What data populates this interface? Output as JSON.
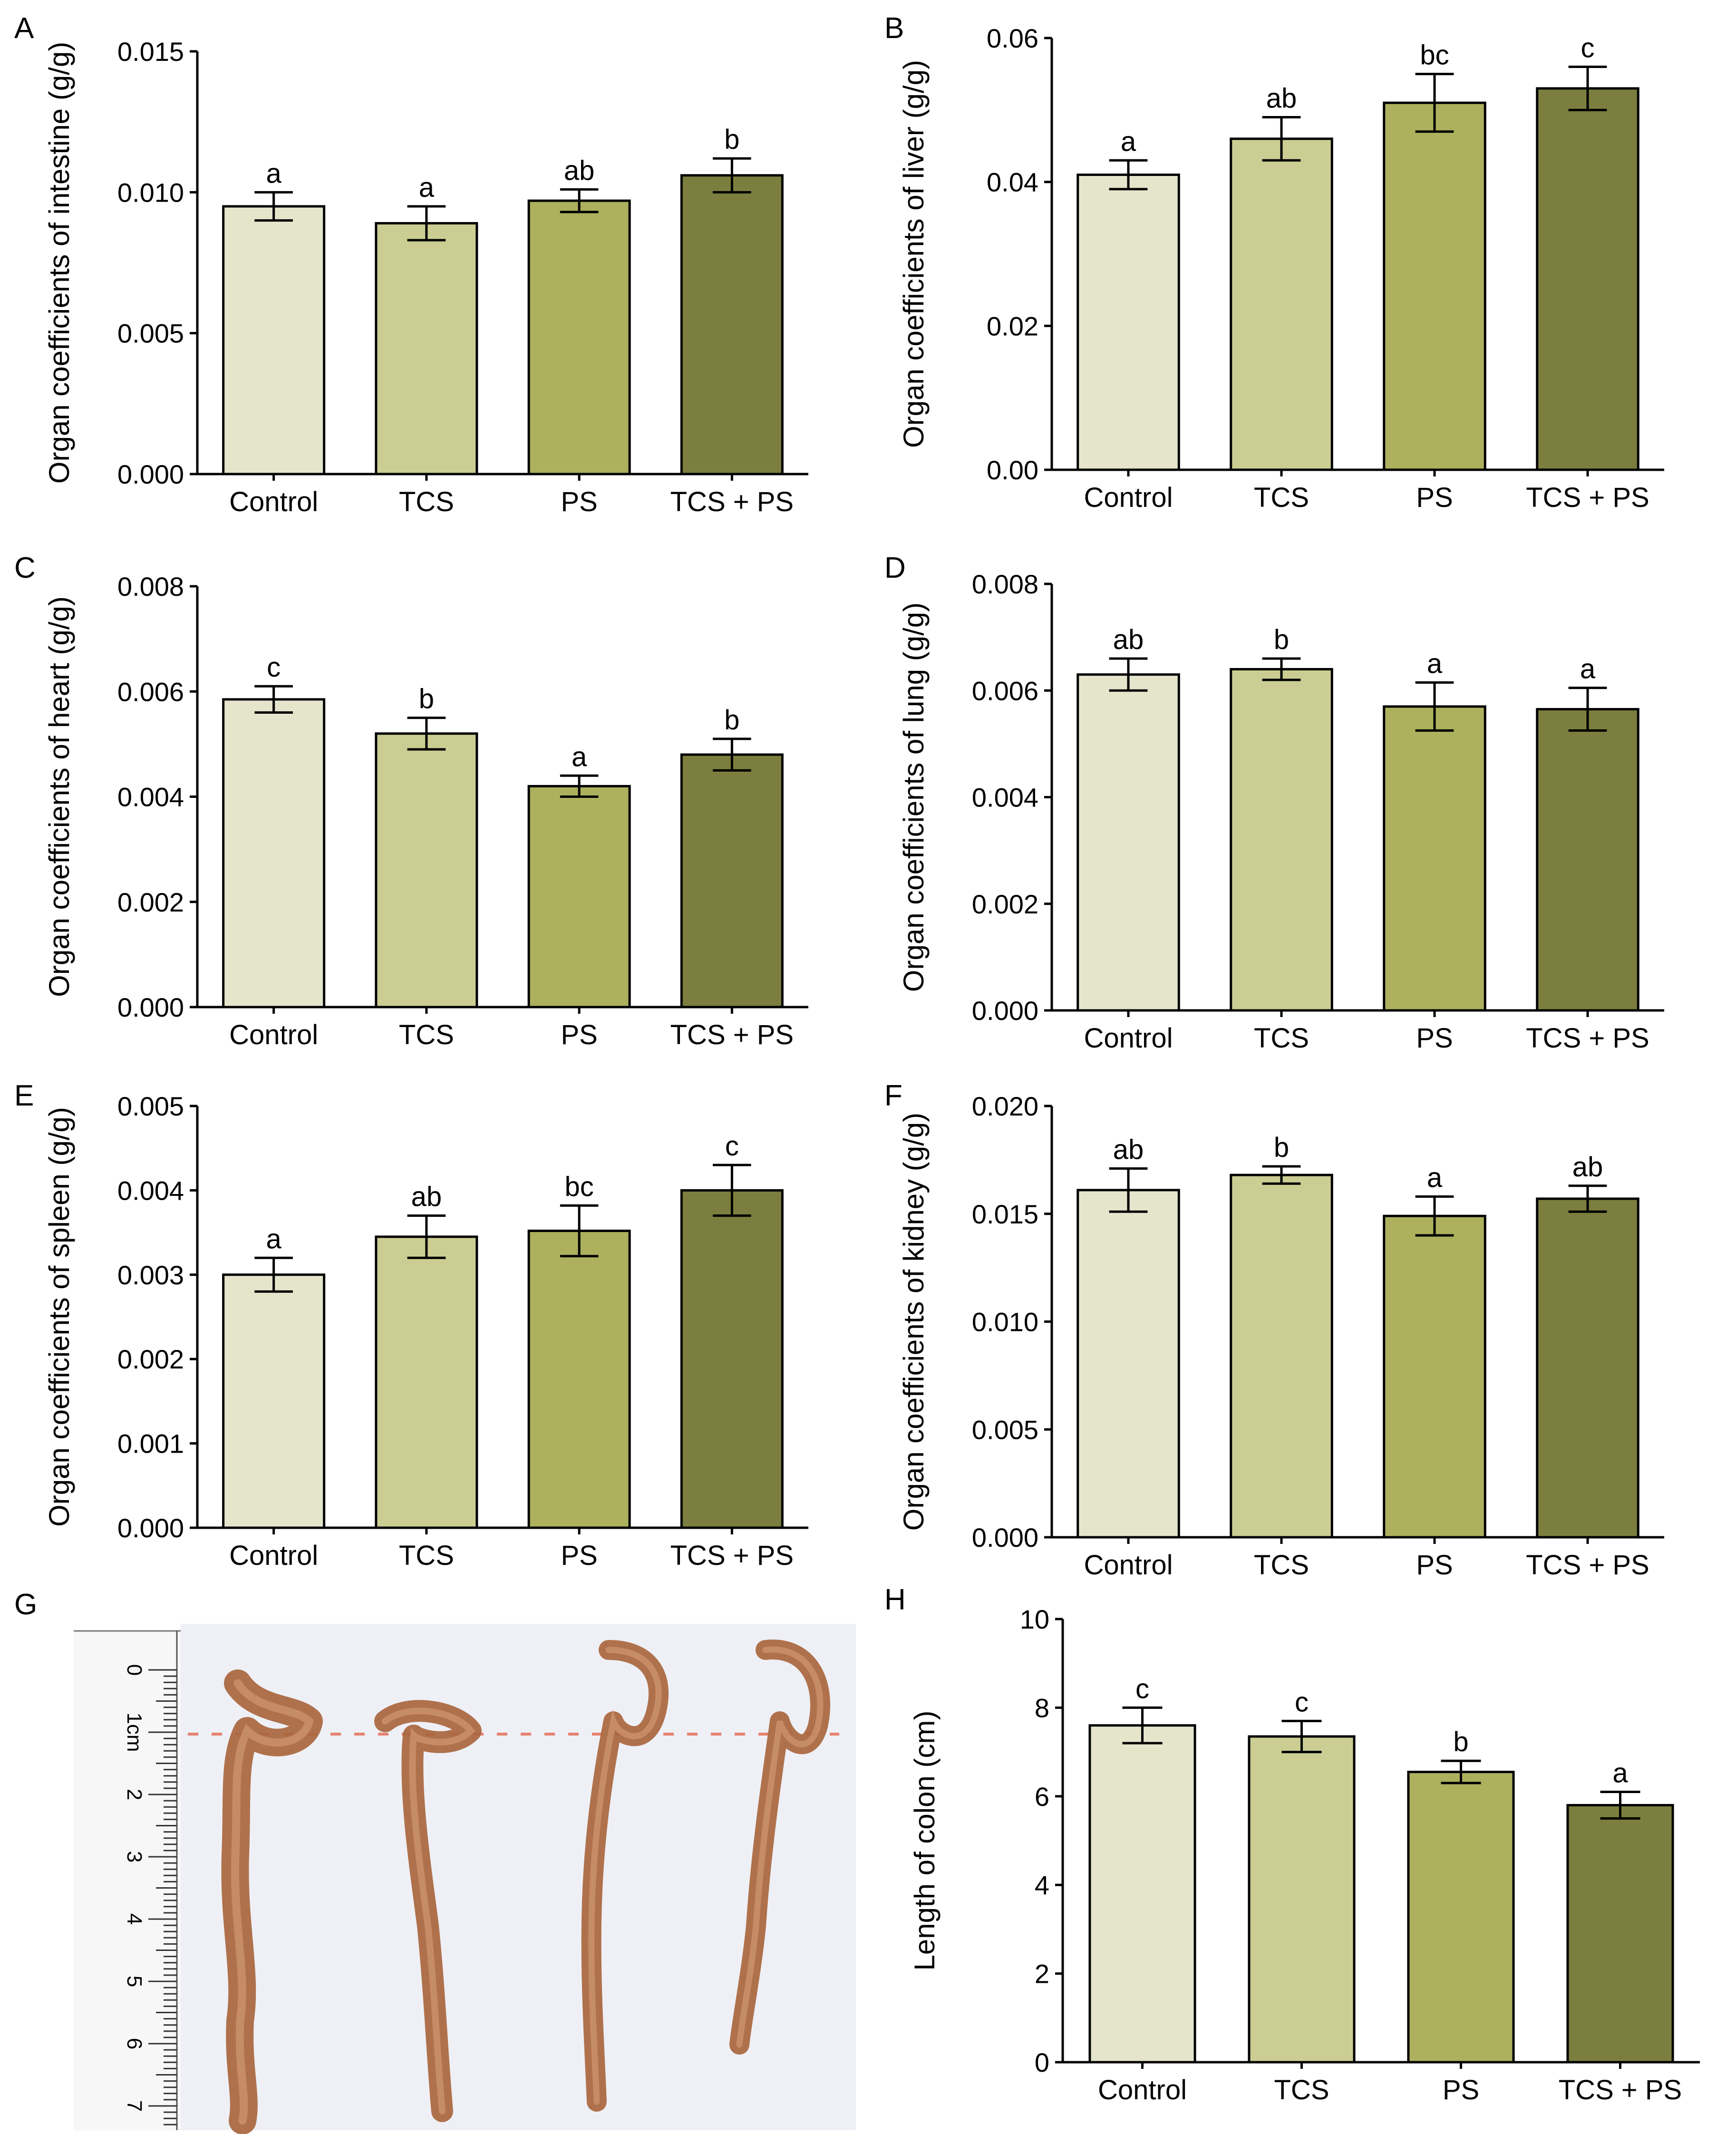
{
  "colors": {
    "control": "#e4e5cb",
    "tcs": "#cbcd93",
    "ps": "#adb05d",
    "tcs_ps": "#7b7e3e",
    "photo_background": "#eef0f6",
    "tissue": "#a9663d",
    "dashed_line": "#e5826f"
  },
  "chart_data": [
    {
      "panel": "A",
      "type": "bar",
      "ylabel": "Organ coefficients of intestine (g/g)",
      "categories": [
        "Control",
        "TCS",
        "PS",
        "TCS + PS"
      ],
      "values": [
        0.0095,
        0.0089,
        0.0097,
        0.0106
      ],
      "errors": [
        0.0005,
        0.0006,
        0.0004,
        0.0006
      ],
      "significance": [
        "a",
        "a",
        "ab",
        "b"
      ],
      "ylim": [
        0,
        0.015
      ],
      "yticks": [
        "0.000",
        "0.005",
        "0.010",
        "0.015"
      ],
      "ytick_values": [
        0,
        0.005,
        0.01,
        0.015
      ]
    },
    {
      "panel": "B",
      "type": "bar",
      "ylabel": "Organ coefficients of liver (g/g)",
      "categories": [
        "Control",
        "TCS",
        "PS",
        "TCS + PS"
      ],
      "values": [
        0.041,
        0.046,
        0.051,
        0.053
      ],
      "errors": [
        0.002,
        0.003,
        0.004,
        0.003
      ],
      "significance": [
        "a",
        "ab",
        "bc",
        "c"
      ],
      "ylim": [
        0,
        0.06
      ],
      "yticks": [
        "0.00",
        "0.02",
        "0.04",
        "0.06"
      ],
      "ytick_values": [
        0,
        0.02,
        0.04,
        0.06
      ]
    },
    {
      "panel": "C",
      "type": "bar",
      "ylabel": "Organ coefficients of heart (g/g)",
      "categories": [
        "Control",
        "TCS",
        "PS",
        "TCS + PS"
      ],
      "values": [
        0.00585,
        0.0052,
        0.0042,
        0.0048
      ],
      "errors": [
        0.00025,
        0.0003,
        0.0002,
        0.0003
      ],
      "significance": [
        "c",
        "b",
        "a",
        "b"
      ],
      "ylim": [
        0,
        0.008
      ],
      "yticks": [
        "0.000",
        "0.002",
        "0.004",
        "0.006",
        "0.008"
      ],
      "ytick_values": [
        0,
        0.002,
        0.004,
        0.006,
        0.008
      ]
    },
    {
      "panel": "D",
      "type": "bar",
      "ylabel": "Organ coefficients of lung (g/g)",
      "categories": [
        "Control",
        "TCS",
        "PS",
        "TCS + PS"
      ],
      "values": [
        0.0063,
        0.0064,
        0.0057,
        0.00565
      ],
      "errors": [
        0.0003,
        0.0002,
        0.00045,
        0.0004
      ],
      "significance": [
        "ab",
        "b",
        "a",
        "a"
      ],
      "ylim": [
        0,
        0.008
      ],
      "yticks": [
        "0.000",
        "0.002",
        "0.004",
        "0.006",
        "0.008"
      ],
      "ytick_values": [
        0,
        0.002,
        0.004,
        0.006,
        0.008
      ]
    },
    {
      "panel": "E",
      "type": "bar",
      "ylabel": "Organ coefficients of spleen (g/g)",
      "categories": [
        "Control",
        "TCS",
        "PS",
        "TCS + PS"
      ],
      "values": [
        0.003,
        0.00345,
        0.00352,
        0.004
      ],
      "errors": [
        0.0002,
        0.00025,
        0.0003,
        0.0003
      ],
      "significance": [
        "a",
        "ab",
        "bc",
        "c"
      ],
      "ylim": [
        0,
        0.005
      ],
      "yticks": [
        "0.000",
        "0.001",
        "0.002",
        "0.003",
        "0.004",
        "0.005"
      ],
      "ytick_values": [
        0,
        0.001,
        0.002,
        0.003,
        0.004,
        0.005
      ]
    },
    {
      "panel": "F",
      "type": "bar",
      "ylabel": "Organ coefficients of kidney (g/g)",
      "categories": [
        "Control",
        "TCS",
        "PS",
        "TCS + PS"
      ],
      "values": [
        0.0161,
        0.0168,
        0.0149,
        0.0157
      ],
      "errors": [
        0.001,
        0.0004,
        0.0009,
        0.0006
      ],
      "significance": [
        "ab",
        "b",
        "a",
        "ab"
      ],
      "ylim": [
        0,
        0.02
      ],
      "yticks": [
        "0.000",
        "0.005",
        "0.010",
        "0.015",
        "0.020"
      ],
      "ytick_values": [
        0,
        0.005,
        0.01,
        0.015,
        0.02
      ]
    },
    {
      "panel": "H",
      "type": "bar",
      "ylabel": "Length of colon (cm)",
      "categories": [
        "Control",
        "TCS",
        "PS",
        "TCS + PS"
      ],
      "values": [
        7.6,
        7.35,
        6.55,
        5.8
      ],
      "errors": [
        0.4,
        0.35,
        0.25,
        0.3
      ],
      "significance": [
        "c",
        "c",
        "b",
        "a"
      ],
      "ylim": [
        0,
        10
      ],
      "yticks": [
        "0",
        "2",
        "4",
        "6",
        "8",
        "10"
      ],
      "ytick_values": [
        0,
        2,
        4,
        6,
        8,
        10
      ]
    }
  ],
  "photo_panel": {
    "letter": "G",
    "ruler_labels": [
      "0",
      "1cm",
      "2",
      "3",
      "4",
      "5",
      "6",
      "7"
    ]
  }
}
